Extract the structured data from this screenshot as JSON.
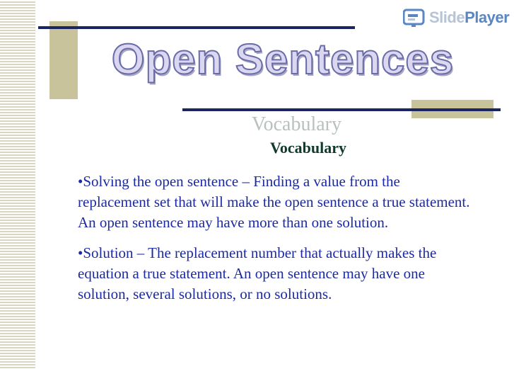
{
  "logo": {
    "slide_text": "Slide",
    "player_text": "Player",
    "icon": "slideplayer-logo-icon"
  },
  "slide": {
    "title": "Open Sentences",
    "vocab_ghost": "Vocabulary",
    "vocab_heading": "Vocabulary",
    "bullets": [
      "•Solving the open sentence – Finding a value from the replacement set that will make the open sentence a true statement. An open sentence may have more than one solution.",
      "•Solution – The replacement number that actually makes the equation a true statement. An open sentence may have one solution, several solutions, or no solutions."
    ]
  },
  "colors": {
    "accent_navy": "#1b2560",
    "accent_tan": "#c8c39a",
    "body_text": "#1c2aa3",
    "heading_green": "#0f3b2a"
  }
}
